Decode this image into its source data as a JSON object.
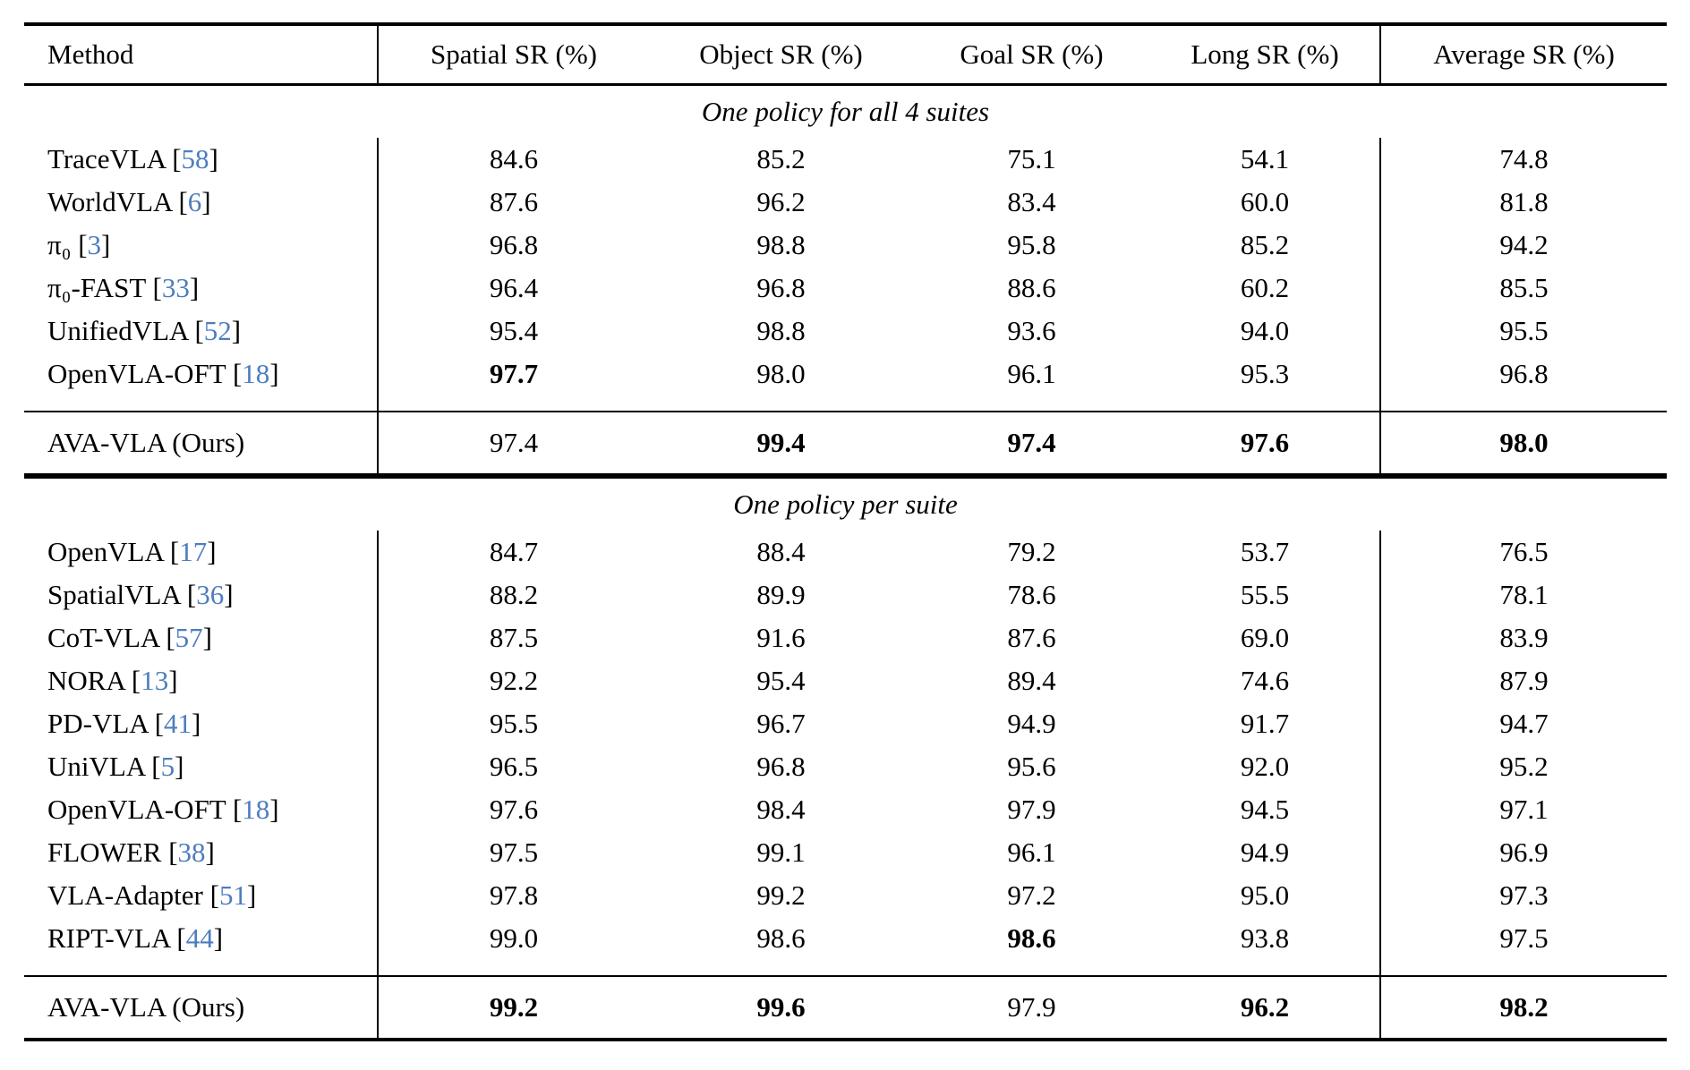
{
  "table": {
    "accent_color": "#4d7dbe",
    "columns": {
      "method": "Method",
      "spatial": "Spatial SR (%)",
      "object": "Object SR (%)",
      "goal": "Goal SR (%)",
      "long": "Long SR (%)",
      "average": "Average SR (%)"
    },
    "sections": [
      {
        "label": "One policy for all 4 suites",
        "rows": [
          {
            "method": "TraceVLA",
            "cite": "58",
            "values": [
              "84.6",
              "85.2",
              "75.1",
              "54.1",
              "74.8"
            ],
            "bold": [
              false,
              false,
              false,
              false,
              false
            ]
          },
          {
            "method": "WorldVLA",
            "cite": "6",
            "values": [
              "87.6",
              "96.2",
              "83.4",
              "60.0",
              "81.8"
            ],
            "bold": [
              false,
              false,
              false,
              false,
              false
            ]
          },
          {
            "method": "π₀",
            "cite": "3",
            "values": [
              "96.8",
              "98.8",
              "95.8",
              "85.2",
              "94.2"
            ],
            "bold": [
              false,
              false,
              false,
              false,
              false
            ]
          },
          {
            "method": "π₀-FAST",
            "cite": "33",
            "values": [
              "96.4",
              "96.8",
              "88.6",
              "60.2",
              "85.5"
            ],
            "bold": [
              false,
              false,
              false,
              false,
              false
            ]
          },
          {
            "method": "UnifiedVLA",
            "cite": "52",
            "values": [
              "95.4",
              "98.8",
              "93.6",
              "94.0",
              "95.5"
            ],
            "bold": [
              false,
              false,
              false,
              false,
              false
            ]
          },
          {
            "method": "OpenVLA-OFT",
            "cite": "18",
            "values": [
              "97.7",
              "98.0",
              "96.1",
              "95.3",
              "96.8"
            ],
            "bold": [
              true,
              false,
              false,
              false,
              false
            ]
          }
        ],
        "highlight_row": {
          "method": "AVA-VLA (Ours)",
          "cite": "",
          "values": [
            "97.4",
            "99.4",
            "97.4",
            "97.6",
            "98.0"
          ],
          "bold": [
            false,
            true,
            true,
            true,
            true
          ]
        }
      },
      {
        "label": "One policy per suite",
        "rows": [
          {
            "method": "OpenVLA",
            "cite": "17",
            "values": [
              "84.7",
              "88.4",
              "79.2",
              "53.7",
              "76.5"
            ],
            "bold": [
              false,
              false,
              false,
              false,
              false
            ]
          },
          {
            "method": "SpatialVLA",
            "cite": "36",
            "values": [
              "88.2",
              "89.9",
              "78.6",
              "55.5",
              "78.1"
            ],
            "bold": [
              false,
              false,
              false,
              false,
              false
            ]
          },
          {
            "method": "CoT-VLA",
            "cite": "57",
            "values": [
              "87.5",
              "91.6",
              "87.6",
              "69.0",
              "83.9"
            ],
            "bold": [
              false,
              false,
              false,
              false,
              false
            ]
          },
          {
            "method": "NORA",
            "cite": "13",
            "values": [
              "92.2",
              "95.4",
              "89.4",
              "74.6",
              "87.9"
            ],
            "bold": [
              false,
              false,
              false,
              false,
              false
            ]
          },
          {
            "method": "PD-VLA",
            "cite": "41",
            "values": [
              "95.5",
              "96.7",
              "94.9",
              "91.7",
              "94.7"
            ],
            "bold": [
              false,
              false,
              false,
              false,
              false
            ]
          },
          {
            "method": "UniVLA",
            "cite": "5",
            "values": [
              "96.5",
              "96.8",
              "95.6",
              "92.0",
              "95.2"
            ],
            "bold": [
              false,
              false,
              false,
              false,
              false
            ]
          },
          {
            "method": "OpenVLA-OFT",
            "cite": "18",
            "values": [
              "97.6",
              "98.4",
              "97.9",
              "94.5",
              "97.1"
            ],
            "bold": [
              false,
              false,
              false,
              false,
              false
            ]
          },
          {
            "method": "FLOWER",
            "cite": "38",
            "values": [
              "97.5",
              "99.1",
              "96.1",
              "94.9",
              "96.9"
            ],
            "bold": [
              false,
              false,
              false,
              false,
              false
            ]
          },
          {
            "method": "VLA-Adapter",
            "cite": "51",
            "values": [
              "97.8",
              "99.2",
              "97.2",
              "95.0",
              "97.3"
            ],
            "bold": [
              false,
              false,
              false,
              false,
              false
            ]
          },
          {
            "method": "RIPT-VLA",
            "cite": "44",
            "values": [
              "99.0",
              "98.6",
              "98.6",
              "93.8",
              "97.5"
            ],
            "bold": [
              false,
              false,
              true,
              false,
              false
            ]
          }
        ],
        "highlight_row": {
          "method": "AVA-VLA (Ours)",
          "cite": "",
          "values": [
            "99.2",
            "99.6",
            "97.9",
            "96.2",
            "98.2"
          ],
          "bold": [
            true,
            true,
            false,
            true,
            true
          ]
        }
      }
    ]
  }
}
